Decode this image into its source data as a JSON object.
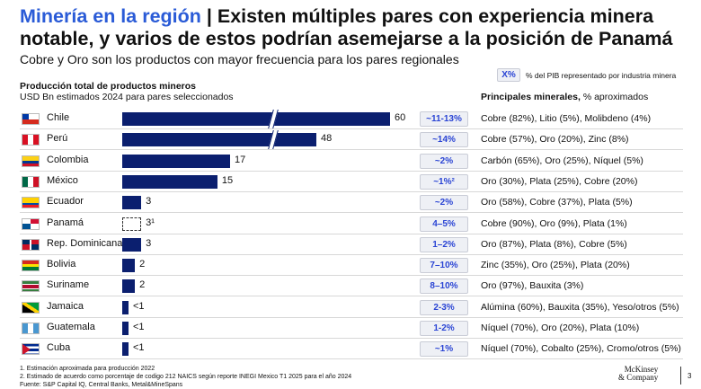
{
  "header": {
    "title_highlight": "Minería en la región",
    "title_rest": " | Existen múltiples pares con experiencia minera notable, y varios de estos podrían asemejarse a la posición de Panamá",
    "subtitle": "Cobre y Oro son los productos con mayor frecuencia para los pares regionales"
  },
  "legend": {
    "swatch": "X%",
    "text": "% del PIB representado por industria minera"
  },
  "chart_data": {
    "type": "bar",
    "orientation": "horizontal",
    "title": "Producción total de productos mineros",
    "ylabel": "USD Bn estimados 2024 para pares seleccionados",
    "right_header_bold": "Principales minerales,",
    "right_header_rest": " % aproximados",
    "categories": [
      "Chile",
      "Perú",
      "Colombia",
      "México",
      "Ecuador",
      "Panamá",
      "Rep. Dominicana",
      "Bolivia",
      "Suriname",
      "Jamaica",
      "Guatemala",
      "Cuba"
    ],
    "values": [
      60,
      48,
      17,
      15,
      3,
      3,
      3,
      2,
      2,
      0.5,
      0.5,
      0.5
    ],
    "labels": [
      "60",
      "48",
      "17",
      "15",
      "3",
      "3¹",
      "3",
      "2",
      "2",
      "<1",
      "<1",
      "<1"
    ],
    "broken_axis": [
      "Chile",
      "Perú"
    ],
    "estimated": [
      "Panamá"
    ],
    "gdp_share": [
      "~11-13%",
      "~14%",
      "~2%",
      "~1%²",
      "~2%",
      "4–5%",
      "1–2%",
      "7–10%",
      "8–10%",
      "2-3%",
      "1-2%",
      "~1%"
    ],
    "minerals": [
      "Cobre (82%), Litio (5%), Molibdeno (4%)",
      "Cobre (57%), Oro (20%), Zinc (8%)",
      "Carbón (65%), Oro (25%), Níquel (5%)",
      "Oro (30%), Plata (25%), Cobre (20%)",
      "Oro (58%), Cobre (37%), Plata (5%)",
      "Cobre (90%), Oro (9%), Plata (1%)",
      "Oro (87%), Plata (8%), Cobre (5%)",
      "Zinc (35%), Oro (25%), Plata (20%)",
      "Oro (97%), Bauxita (3%)",
      "Alúmina (60%), Bauxita (35%), Yeso/otros (5%)",
      "Níquel (70%), Oro (20%), Plata (10%)",
      "Níquel (70%), Cobalto (25%), Cromo/otros (5%)"
    ],
    "bar_color": "#0b1f6f"
  },
  "footer": {
    "notes": [
      "1.    Estimación aproximada para producción 2022",
      "2.    Estimado de acuerdo como porcentaje de codigo 212 NAICS según reporte INEGI Mexico T1 2025 para el año 2024",
      "Fuente: S&P Capital IQ, Central Banks, Metal&MineSpans"
    ],
    "logo": "McKinsey & Company",
    "page": "3"
  }
}
